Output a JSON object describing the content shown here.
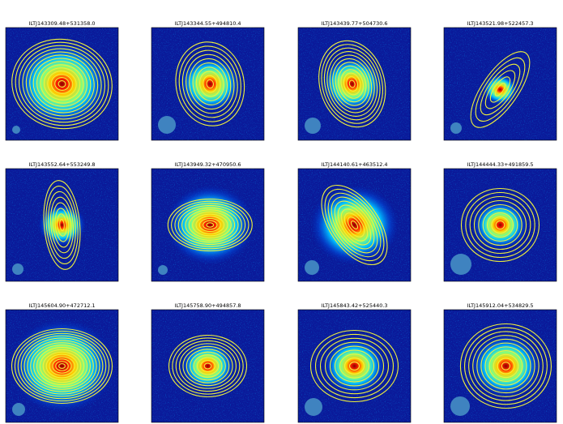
{
  "panels": [
    {
      "title": "ILTJ143309.48+531358.0"
    },
    {
      "title": "ILTJ143344.55+494810.4"
    },
    {
      "title": "ILTJ143439.77+504730.6"
    },
    {
      "title": "ILTJ143521.98+522457.3"
    },
    {
      "title": "ILTJ143552.64+553249.8"
    },
    {
      "title": "ILTJ143949.32+470950.6"
    },
    {
      "title": "ILTJ144140.61+463512.4"
    },
    {
      "title": "ILTJ144444.33+491859.5"
    },
    {
      "title": "ILTJ145604.90+472712.1"
    },
    {
      "title": "ILTJ145758.90+494857.8"
    },
    {
      "title": "ILTJ145843.42+525440.3"
    },
    {
      "title": "ILTJ145912.04+534829.5"
    }
  ]
}
